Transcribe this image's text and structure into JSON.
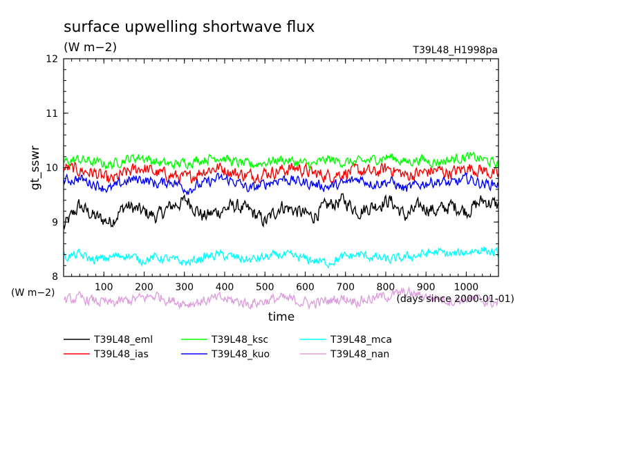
{
  "chart_data": {
    "type": "line",
    "title": "surface upwelling shortwave flux",
    "units_label": "(W m−2)",
    "run_label": "T39L48_H1998pa",
    "ylabel": "gt_sswr",
    "xlabel": "time",
    "xunits_label": "(days since 2000-01-01)",
    "left_units_label": "(W m−2)",
    "ylim": [
      8,
      12
    ],
    "xlim": [
      0,
      1080
    ],
    "yticks": [
      "8",
      "9",
      "10",
      "11",
      "12"
    ],
    "xticks": [
      "100",
      "200",
      "300",
      "400",
      "500",
      "600",
      "700",
      "800",
      "900",
      "1000"
    ],
    "series": [
      {
        "name": "T39L48_eml",
        "color": "#000000",
        "mean": 9.2,
        "amp": 0.22,
        "samples": [
          8.9,
          9.3,
          9.1,
          9.0,
          9.3,
          9.2,
          9.1,
          9.3,
          9.4,
          9.1,
          9.2,
          9.3,
          9.2,
          9.0,
          9.3,
          9.2,
          9.1,
          9.3,
          9.4,
          9.2,
          9.3,
          9.4,
          9.1,
          9.3,
          9.2,
          9.3,
          9.2,
          9.4,
          9.3
        ]
      },
      {
        "name": "T39L48_kuo",
        "color": "#0000ff",
        "mean": 9.72,
        "amp": 0.16,
        "samples": [
          9.75,
          9.8,
          9.7,
          9.6,
          9.75,
          9.8,
          9.7,
          9.75,
          9.6,
          9.7,
          9.8,
          9.75,
          9.6,
          9.7,
          9.8,
          9.75,
          9.7,
          9.65,
          9.7,
          9.8,
          9.7,
          9.75,
          9.6,
          9.7,
          9.75,
          9.7,
          9.8,
          9.7,
          9.7
        ]
      },
      {
        "name": "T39L48_ias",
        "color": "#ff0000",
        "mean": 9.9,
        "amp": 0.2,
        "samples": [
          10.0,
          9.95,
          9.9,
          9.75,
          9.9,
          10.0,
          9.9,
          9.85,
          9.8,
          9.95,
          10.0,
          9.9,
          9.85,
          9.9,
          9.95,
          10.0,
          9.9,
          9.85,
          9.9,
          9.95,
          9.9,
          10.0,
          9.85,
          9.9,
          9.95,
          9.9,
          10.0,
          9.95,
          9.85
        ]
      },
      {
        "name": "T39L48_ksc",
        "color": "#00ff00",
        "mean": 10.1,
        "amp": 0.15,
        "samples": [
          10.1,
          10.15,
          10.1,
          10.05,
          10.15,
          10.2,
          10.1,
          10.05,
          10.1,
          10.15,
          10.2,
          10.1,
          10.05,
          10.1,
          10.15,
          10.1,
          10.05,
          10.15,
          10.1,
          10.1,
          10.15,
          10.2,
          10.1,
          10.15,
          10.1,
          10.15,
          10.2,
          10.15,
          10.05
        ]
      },
      {
        "name": "T39L48_mca",
        "color": "#00ffff",
        "mean": 8.35,
        "amp": 0.14,
        "samples": [
          8.35,
          8.4,
          8.3,
          8.35,
          8.4,
          8.3,
          8.35,
          8.3,
          8.25,
          8.35,
          8.4,
          8.35,
          8.3,
          8.35,
          8.4,
          8.35,
          8.3,
          8.25,
          8.35,
          8.4,
          8.35,
          8.3,
          8.35,
          8.4,
          8.45,
          8.4,
          8.45,
          8.5,
          8.4
        ]
      },
      {
        "name": "T39L48_nan",
        "color": "#dda0dd",
        "mean": 7.55,
        "amp": 0.16,
        "samples": [
          7.55,
          7.6,
          7.55,
          7.5,
          7.55,
          7.6,
          7.65,
          7.55,
          7.5,
          7.55,
          7.6,
          7.55,
          7.5,
          7.55,
          7.6,
          7.55,
          7.5,
          7.55,
          7.6,
          7.55,
          7.6,
          7.65,
          7.7,
          7.65,
          7.6,
          7.55,
          7.6,
          7.55,
          7.5
        ]
      }
    ],
    "legend": {
      "placement": "bottom",
      "columns": 3,
      "order": [
        "T39L48_eml",
        "T39L48_ksc",
        "T39L48_mca",
        "T39L48_ias",
        "T39L48_kuo",
        "T39L48_nan"
      ]
    }
  }
}
